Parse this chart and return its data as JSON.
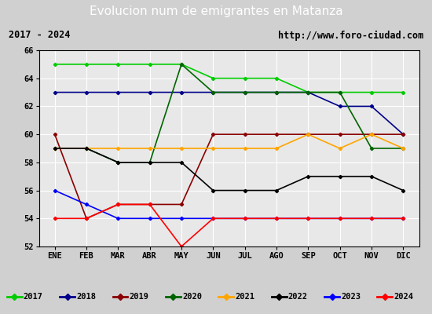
{
  "title": "Evolucion num de emigrantes en Matanza",
  "subtitle_left": "2017 - 2024",
  "subtitle_right": "http://www.foro-ciudad.com",
  "months": [
    "ENE",
    "FEB",
    "MAR",
    "ABR",
    "MAY",
    "JUN",
    "JUL",
    "AGO",
    "SEP",
    "OCT",
    "NOV",
    "DIC"
  ],
  "ylim": [
    52,
    66
  ],
  "yticks": [
    52,
    54,
    56,
    58,
    60,
    62,
    64,
    66
  ],
  "series": {
    "2017": {
      "color": "#00cc00",
      "data": [
        65,
        65,
        65,
        65,
        65,
        64,
        64,
        64,
        63,
        63,
        63,
        63
      ]
    },
    "2018": {
      "color": "#00008b",
      "data": [
        63,
        63,
        63,
        63,
        63,
        63,
        63,
        63,
        63,
        62,
        62,
        60
      ]
    },
    "2019": {
      "color": "#8b0000",
      "data": [
        60,
        54,
        55,
        55,
        55,
        60,
        60,
        60,
        60,
        60,
        60,
        60
      ]
    },
    "2020": {
      "color": "#006400",
      "data": [
        59,
        59,
        58,
        58,
        65,
        63,
        63,
        63,
        63,
        63,
        59,
        59
      ]
    },
    "2021": {
      "color": "#ffa500",
      "data": [
        59,
        59,
        59,
        59,
        59,
        59,
        59,
        59,
        60,
        59,
        60,
        59
      ]
    },
    "2022": {
      "color": "#000000",
      "data": [
        59,
        59,
        58,
        58,
        58,
        56,
        56,
        56,
        57,
        57,
        57,
        56
      ]
    },
    "2023": {
      "color": "#0000ff",
      "data": [
        56,
        55,
        54,
        54,
        54,
        54,
        54,
        54,
        54,
        54,
        54,
        54
      ]
    },
    "2024": {
      "color": "#ff0000",
      "data": [
        54,
        54,
        55,
        55,
        52,
        54,
        54,
        54,
        54,
        54,
        54,
        54
      ]
    }
  },
  "fig_bg_color": "#d0d0d0",
  "plot_bg_color": "#e8e8e8",
  "title_bg_color": "#4d8cc8",
  "title_text_color": "#ffffff",
  "subtitle_bg_color": "#ffffff",
  "grid_color": "#ffffff",
  "legend_bg_color": "#ffffff"
}
